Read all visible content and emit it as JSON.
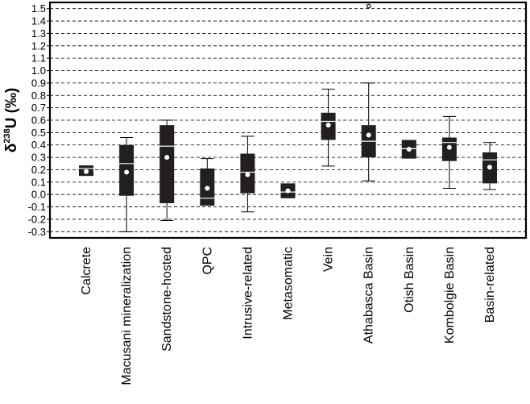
{
  "chart_data": {
    "type": "box",
    "ylabel": {
      "prefix": "δ",
      "superscript": "238",
      "suffix": "U (‰)"
    },
    "ylim": [
      -0.35,
      1.55
    ],
    "yticks": [
      -0.3,
      -0.2,
      -0.1,
      0.0,
      0.1,
      0.2,
      0.3,
      0.4,
      0.5,
      0.6,
      0.7,
      0.8,
      0.9,
      1.0,
      1.1,
      1.2,
      1.3,
      1.4,
      1.5
    ],
    "ytick_labels": [
      "-0.3",
      "-0.2",
      "-0.1",
      "0.0",
      "0.1",
      "0.2",
      "0.3",
      "0.4",
      "0.5",
      "0.6",
      "0.7",
      "0.8",
      "0.9",
      "1.0",
      "1.1",
      "1.2",
      "1.3",
      "1.4",
      "1.5"
    ],
    "grid": "horizontal-dashed",
    "categories": [
      "Calcrete",
      "Macusani mineralization",
      "Sandstone-hosted",
      "QPC",
      "Intrusive-related",
      "Metasomatic",
      "Vein",
      "Athabasca Basin",
      "Otish Basin",
      "Kombolgie Basin",
      "Basin-related"
    ],
    "boxes": [
      {
        "category": "Calcrete",
        "whisker_low": null,
        "q1": 0.15,
        "median": 0.21,
        "q3": 0.235,
        "whisker_high": null,
        "mean": 0.185,
        "outliers": []
      },
      {
        "category": "Macusani mineralization",
        "whisker_low": -0.3,
        "q1": -0.01,
        "median": 0.25,
        "q3": 0.4,
        "whisker_high": 0.46,
        "mean": 0.18,
        "outliers": []
      },
      {
        "category": "Sandstone-hosted",
        "whisker_low": -0.21,
        "q1": -0.07,
        "median": 0.39,
        "q3": 0.56,
        "whisker_high": 0.6,
        "mean": 0.3,
        "outliers": []
      },
      {
        "category": "QPC",
        "whisker_low": null,
        "q1": -0.09,
        "median": -0.03,
        "q3": 0.21,
        "whisker_high": 0.29,
        "mean": 0.05,
        "outliers": []
      },
      {
        "category": "Intrusive-related",
        "whisker_low": -0.14,
        "q1": 0.01,
        "median": 0.18,
        "q3": 0.33,
        "whisker_high": 0.47,
        "mean": 0.16,
        "outliers": []
      },
      {
        "category": "Metasomatic",
        "whisker_low": null,
        "q1": -0.03,
        "median": 0.02,
        "q3": 0.09,
        "whisker_high": null,
        "mean": 0.03,
        "outliers": []
      },
      {
        "category": "Vein",
        "whisker_low": 0.23,
        "q1": 0.44,
        "median": 0.59,
        "q3": 0.66,
        "whisker_high": 0.85,
        "mean": 0.56,
        "outliers": []
      },
      {
        "category": "Athabasca Basin",
        "whisker_low": 0.11,
        "q1": 0.3,
        "median": 0.43,
        "q3": 0.56,
        "whisker_high": 0.9,
        "mean": 0.48,
        "outliers": [
          1.52
        ]
      },
      {
        "category": "Otish Basin",
        "whisker_low": null,
        "q1": 0.29,
        "median": 0.37,
        "q3": 0.44,
        "whisker_high": null,
        "mean": 0.365,
        "outliers": []
      },
      {
        "category": "Kombolgie Basin",
        "whisker_low": 0.05,
        "q1": 0.27,
        "median": 0.42,
        "q3": 0.46,
        "whisker_high": 0.63,
        "mean": 0.38,
        "outliers": []
      },
      {
        "category": "Basin-related",
        "whisker_low": 0.04,
        "q1": 0.09,
        "median": 0.28,
        "q3": 0.34,
        "whisker_high": 0.42,
        "mean": 0.22,
        "outliers": []
      }
    ],
    "box_color": "#231f20",
    "mean_marker_color": "#ffffff",
    "median_line_color": "#ffffff"
  }
}
